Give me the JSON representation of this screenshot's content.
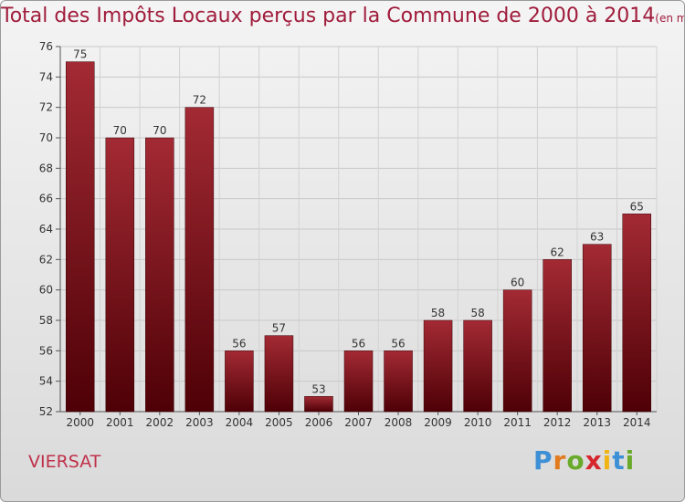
{
  "title": "Total des Impôts Locaux perçus par la Commune de 2000 à 2014",
  "subtitle": "(en milliers d'€)",
  "commune": "VIERSAT",
  "logo": {
    "letters": [
      "P",
      "r",
      "o",
      "x",
      "i",
      "t",
      "i"
    ],
    "colors": [
      "#3d8fd6",
      "#e27a1e",
      "#6aaa2a",
      "#d6262e",
      "#f0b415",
      "#3d8fd6",
      "#6aaa2a"
    ]
  },
  "colors": {
    "bar_top": "#a32a34",
    "bar_bottom": "#4e0006",
    "title": "#a01c3c"
  },
  "chart_data": {
    "type": "bar",
    "title": "Total des Impôts Locaux perçus par la Commune de 2000 à 2014",
    "subtitle": "(en milliers d'€)",
    "categories": [
      "2000",
      "2001",
      "2002",
      "2003",
      "2004",
      "2005",
      "2006",
      "2007",
      "2008",
      "2009",
      "2010",
      "2011",
      "2012",
      "2013",
      "2014"
    ],
    "values": [
      75,
      70,
      70,
      72,
      56,
      57,
      53,
      56,
      56,
      58,
      58,
      60,
      62,
      63,
      65
    ],
    "xlabel": "",
    "ylabel": "",
    "ylim": [
      52,
      76
    ],
    "yticks": [
      52,
      54,
      56,
      58,
      60,
      62,
      64,
      66,
      68,
      70,
      72,
      74,
      76
    ],
    "grid": true
  }
}
